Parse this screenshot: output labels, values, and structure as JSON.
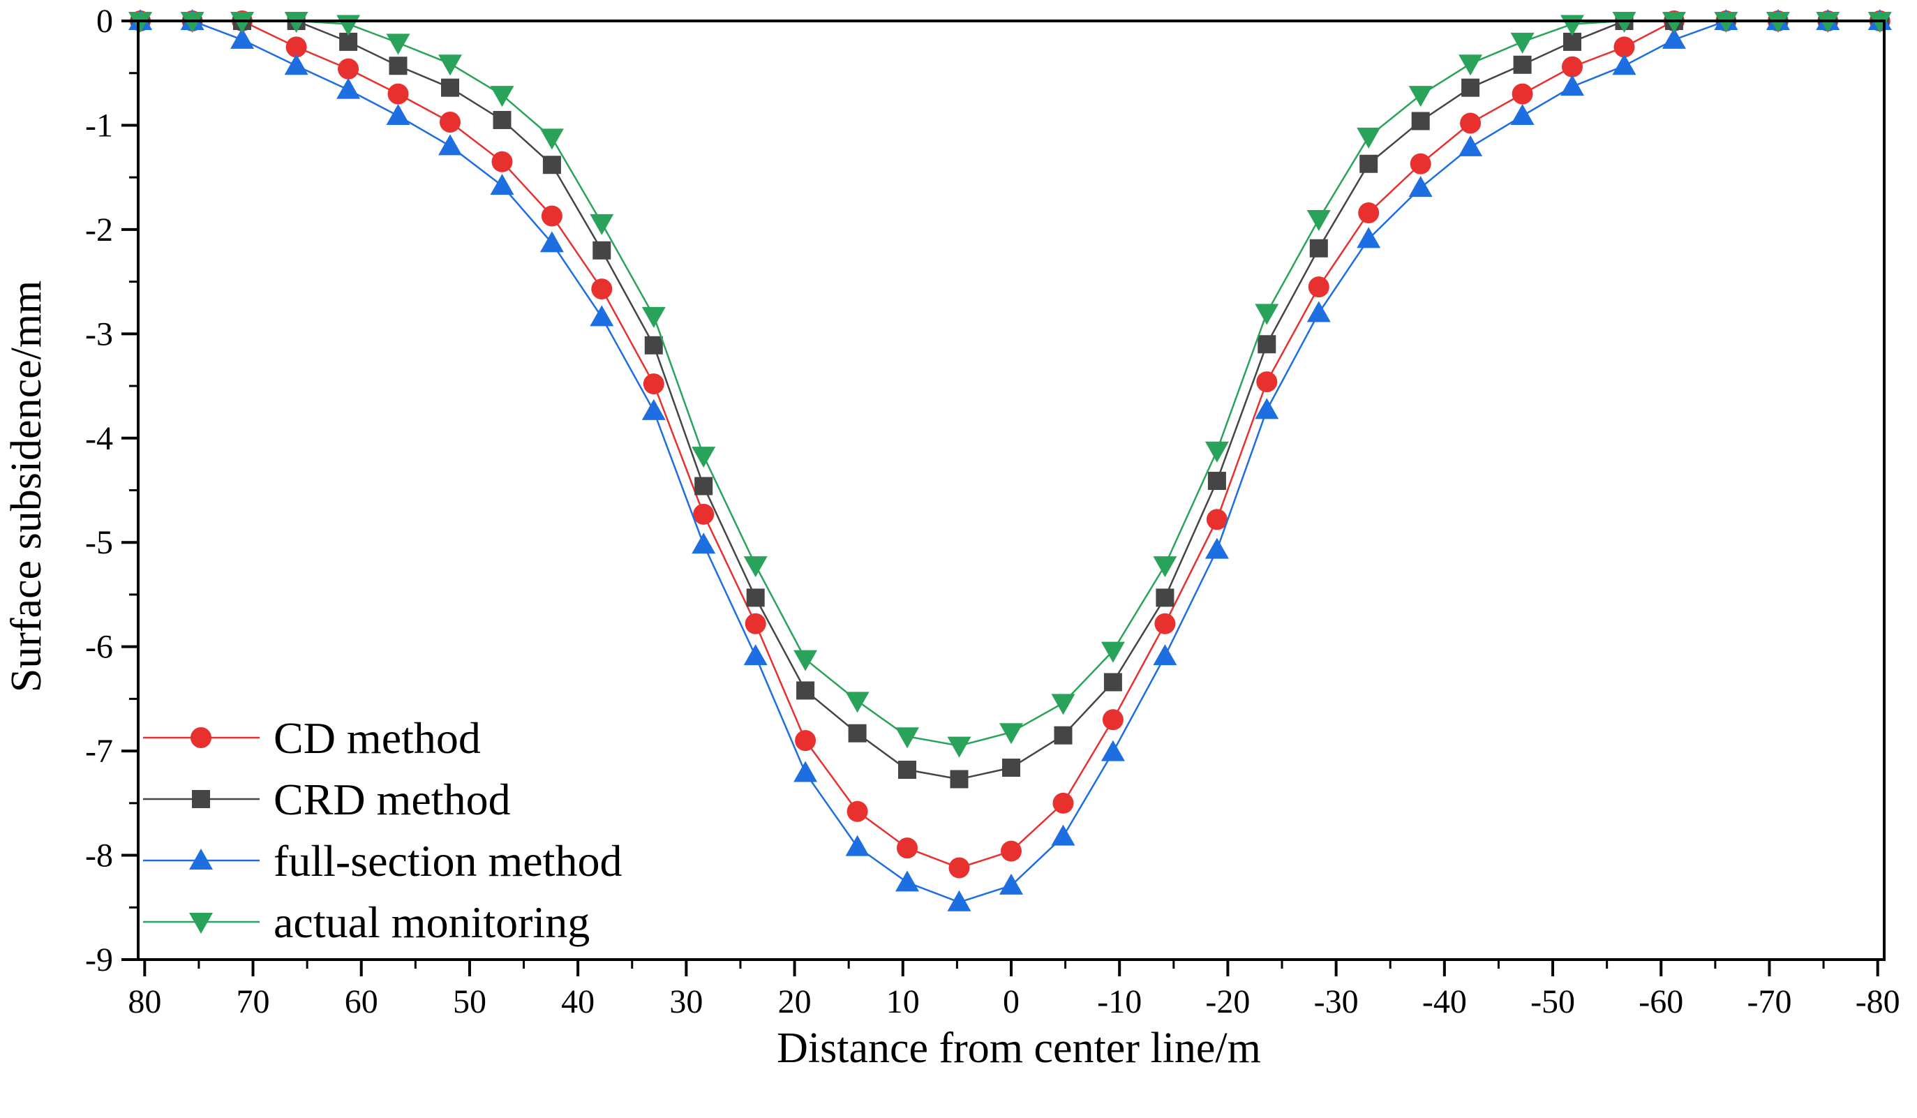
{
  "chart_data": {
    "type": "line",
    "title": "",
    "xlabel": "Distance from center line/m",
    "ylabel": "Surface subsidence/mm",
    "xlim": [
      80.6,
      -80.6
    ],
    "ylim": [
      -9,
      0
    ],
    "xticks": [
      80,
      70,
      60,
      50,
      40,
      30,
      20,
      10,
      0,
      -10,
      -20,
      -30,
      -40,
      -50,
      -60,
      -70,
      -80
    ],
    "xtick_labels": [
      "80",
      "70",
      "60",
      "50",
      "40",
      "30",
      "20",
      "10",
      "0",
      "-10",
      "-20",
      "-30",
      "-40",
      "-50",
      "-60",
      "-70",
      "-80"
    ],
    "yticks": [
      0,
      -1,
      -2,
      -3,
      -4,
      -5,
      -6,
      -7,
      -8,
      -9
    ],
    "ytick_labels": [
      "0",
      "-1",
      "-2",
      "-3",
      "-4",
      "-5",
      "-6",
      "-7",
      "-8",
      "-9"
    ],
    "grid": false,
    "legend_position": "bottom-left",
    "x": [
      80.4,
      75.6,
      71,
      66,
      61.2,
      56.6,
      51.8,
      47,
      42.4,
      37.8,
      33,
      28.4,
      23.6,
      19,
      14.2,
      9.6,
      4.8,
      0,
      -4.8,
      -9.4,
      -14.2,
      -19,
      -23.6,
      -28.4,
      -33,
      -37.8,
      -42.4,
      -47.2,
      -51.8,
      -56.6,
      -61.2,
      -66,
      -70.8,
      -75.4,
      -80.2
    ],
    "series": [
      {
        "name": "CD method",
        "color": "#e8302f",
        "marker": "circle",
        "values": [
          0,
          0,
          0,
          -0.25,
          -0.46,
          -0.7,
          -0.97,
          -1.35,
          -1.87,
          -2.57,
          -3.48,
          -4.73,
          -5.78,
          -6.9,
          -7.58,
          -7.93,
          -8.12,
          -7.96,
          -7.5,
          -6.7,
          -5.78,
          -4.78,
          -3.46,
          -2.55,
          -1.84,
          -1.37,
          -0.98,
          -0.7,
          -0.44,
          -0.25,
          0,
          0,
          0,
          0,
          0
        ]
      },
      {
        "name": "CRD method",
        "color": "#454545",
        "marker": "square",
        "values": [
          0,
          0,
          0,
          0,
          -0.2,
          -0.43,
          -0.64,
          -0.95,
          -1.38,
          -2.2,
          -3.11,
          -4.46,
          -5.53,
          -6.42,
          -6.83,
          -7.18,
          -7.27,
          -7.16,
          -6.85,
          -6.34,
          -5.53,
          -4.41,
          -3.1,
          -2.18,
          -1.37,
          -0.96,
          -0.64,
          -0.42,
          -0.2,
          0,
          0,
          0,
          0,
          0,
          0
        ]
      },
      {
        "name": "full-section method",
        "color": "#1d6ee0",
        "marker": "triangle-up",
        "values": [
          0,
          0,
          -0.18,
          -0.43,
          -0.66,
          -0.91,
          -1.2,
          -1.58,
          -2.13,
          -2.84,
          -3.74,
          -5.02,
          -6.09,
          -7.21,
          -7.92,
          -8.26,
          -8.45,
          -8.29,
          -7.82,
          -7.01,
          -6.09,
          -5.07,
          -3.73,
          -2.8,
          -2.09,
          -1.6,
          -1.21,
          -0.91,
          -0.63,
          -0.43,
          -0.18,
          0,
          0,
          0,
          0
        ]
      },
      {
        "name": "actual monitoring",
        "color": "#2aa35a",
        "marker": "triangle-down",
        "values": [
          0,
          0,
          0,
          0,
          -0.03,
          -0.21,
          -0.41,
          -0.71,
          -1.12,
          -1.94,
          -2.83,
          -4.17,
          -5.22,
          -6.12,
          -6.52,
          -6.86,
          -6.95,
          -6.82,
          -6.54,
          -6.04,
          -5.22,
          -4.12,
          -2.8,
          -1.9,
          -1.11,
          -0.71,
          -0.41,
          -0.2,
          -0.03,
          0,
          0,
          0,
          0,
          0,
          0
        ]
      }
    ]
  }
}
